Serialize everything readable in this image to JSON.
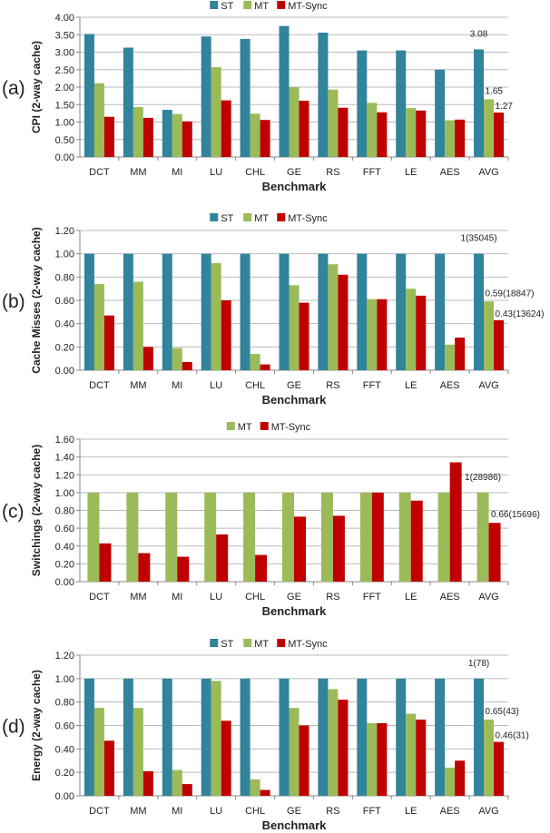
{
  "colors": {
    "ST": "#31849B",
    "MT": "#9BBB59",
    "MT-Sync": "#C00000"
  },
  "chart_data": [
    {
      "type": "bar",
      "panel_label": "(a)",
      "xlabel": "Benchmark",
      "ylabel": "CPI (2-way cache)",
      "ylim": [
        0,
        4
      ],
      "ytick_step": 0.5,
      "ytick_decimals": 2,
      "grid": true,
      "legend": "top",
      "categories": [
        "DCT",
        "MM",
        "MI",
        "LU",
        "CHL",
        "GE",
        "RS",
        "FFT",
        "LE",
        "AES",
        "AVG"
      ],
      "series": [
        {
          "name": "ST",
          "values": [
            3.52,
            3.13,
            1.35,
            3.45,
            3.38,
            3.75,
            3.56,
            3.05,
            3.05,
            2.5,
            3.08
          ]
        },
        {
          "name": "MT",
          "values": [
            2.11,
            1.43,
            1.23,
            2.57,
            1.24,
            2.0,
            1.93,
            1.55,
            1.4,
            1.05,
            1.65
          ]
        },
        {
          "name": "MT-Sync",
          "values": [
            1.15,
            1.12,
            1.02,
            1.62,
            1.06,
            1.61,
            1.41,
            1.28,
            1.33,
            1.07,
            1.27
          ]
        }
      ],
      "annotations": [
        {
          "series": "ST",
          "category": "AVG",
          "text": "3.08"
        },
        {
          "series": "MT",
          "category": "AVG",
          "text": "1.65"
        },
        {
          "series": "MT-Sync",
          "category": "AVG",
          "text": "1.27"
        }
      ]
    },
    {
      "type": "bar",
      "panel_label": "(b)",
      "xlabel": "Benchmark",
      "ylabel": "Cache Misses (2-way cache)",
      "ylim": [
        0,
        1.2
      ],
      "ytick_step": 0.2,
      "ytick_decimals": 2,
      "grid": true,
      "legend": "top",
      "categories": [
        "DCT",
        "MM",
        "MI",
        "LU",
        "CHL",
        "GE",
        "RS",
        "FFT",
        "LE",
        "AES",
        "AVG"
      ],
      "series": [
        {
          "name": "ST",
          "values": [
            1,
            1,
            1,
            1,
            1,
            1,
            1,
            1,
            1,
            1,
            1
          ]
        },
        {
          "name": "MT",
          "values": [
            0.74,
            0.76,
            0.19,
            0.92,
            0.14,
            0.73,
            0.91,
            0.61,
            0.7,
            0.22,
            0.59
          ]
        },
        {
          "name": "MT-Sync",
          "values": [
            0.47,
            0.2,
            0.07,
            0.6,
            0.05,
            0.58,
            0.82,
            0.61,
            0.64,
            0.28,
            0.43
          ]
        }
      ],
      "annotations": [
        {
          "series": "ST",
          "category": "AVG",
          "text": "1(35045)"
        },
        {
          "series": "MT",
          "category": "AVG",
          "text": "0.59(18847)"
        },
        {
          "series": "MT-Sync",
          "category": "AVG",
          "text": "0.43(13624)"
        }
      ]
    },
    {
      "type": "bar",
      "panel_label": "(c)",
      "xlabel": "Benchmark",
      "ylabel": "Switchings (2-way cache)",
      "ylim": [
        0,
        1.6
      ],
      "ytick_step": 0.2,
      "ytick_decimals": 2,
      "grid": true,
      "legend": "top",
      "categories": [
        "DCT",
        "MM",
        "MI",
        "LU",
        "CHL",
        "GE",
        "RS",
        "FFT",
        "LE",
        "AES",
        "AVG"
      ],
      "series": [
        {
          "name": "MT",
          "values": [
            1,
            1,
            1,
            1,
            1,
            1,
            1,
            1,
            1,
            1,
            1
          ]
        },
        {
          "name": "MT-Sync",
          "values": [
            0.43,
            0.32,
            0.28,
            0.53,
            0.3,
            0.73,
            0.74,
            1.0,
            0.91,
            1.34,
            0.66
          ]
        }
      ],
      "annotations": [
        {
          "series": "MT",
          "category": "AVG",
          "text": "1(28986)"
        },
        {
          "series": "MT-Sync",
          "category": "AVG",
          "text": "0.66(15696)"
        }
      ]
    },
    {
      "type": "bar",
      "panel_label": "(d)",
      "xlabel": "Benchmark",
      "ylabel": "Energy (2-way cache)",
      "ylim": [
        0,
        1.2
      ],
      "ytick_step": 0.2,
      "ytick_decimals": 2,
      "grid": true,
      "legend": "top",
      "categories": [
        "DCT",
        "MM",
        "MI",
        "LU",
        "CHL",
        "GE",
        "RS",
        "FFT",
        "LE",
        "AES",
        "AVG"
      ],
      "series": [
        {
          "name": "ST",
          "values": [
            1,
            1,
            1,
            1,
            1,
            1,
            1,
            1,
            1,
            1,
            1
          ]
        },
        {
          "name": "MT",
          "values": [
            0.75,
            0.75,
            0.22,
            0.98,
            0.14,
            0.75,
            0.91,
            0.62,
            0.7,
            0.24,
            0.65
          ]
        },
        {
          "name": "MT-Sync",
          "values": [
            0.47,
            0.21,
            0.1,
            0.64,
            0.05,
            0.6,
            0.82,
            0.62,
            0.65,
            0.3,
            0.46
          ]
        }
      ],
      "annotations": [
        {
          "series": "ST",
          "category": "AVG",
          "text": "1(78)"
        },
        {
          "series": "MT",
          "category": "AVG",
          "text": "0.65(43)"
        },
        {
          "series": "MT-Sync",
          "category": "AVG",
          "text": "0.46(31)"
        }
      ]
    }
  ]
}
